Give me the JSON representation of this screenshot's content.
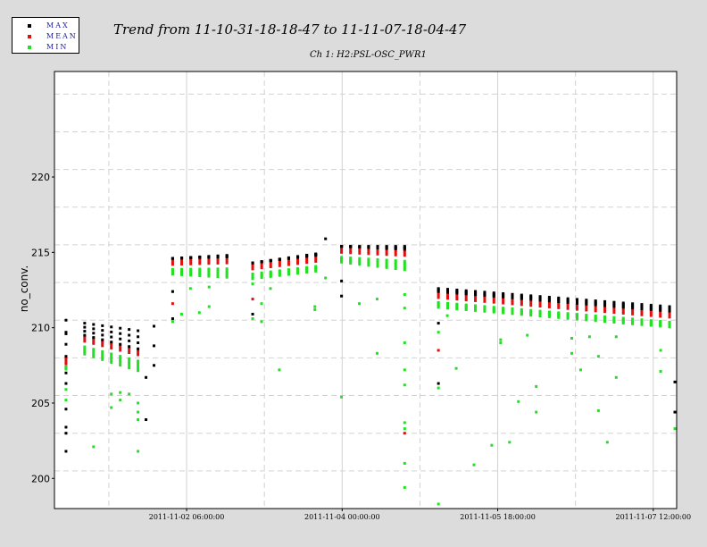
{
  "legend": {
    "items": [
      {
        "label": "MAX",
        "color": "#000000"
      },
      {
        "label": "MEAN",
        "color": "#e01010"
      },
      {
        "label": "MIN",
        "color": "#22e022"
      }
    ]
  },
  "chart_data": {
    "type": "scatter",
    "title": "Trend from 11-10-31-18-18-47 to 11-11-07-18-04-47",
    "subtitle": "Ch 1: H2:PSL-OSC_PWR1",
    "ylabel": "no_conv.",
    "xlabel": "",
    "ylim": [
      198,
      227
    ],
    "xlim": [
      0,
      7
    ],
    "x_unit": "days since 2011-10-31 18:18:47",
    "yticks": [
      200,
      205,
      210,
      215,
      220
    ],
    "xticks": [
      {
        "x": 1.4869,
        "label": "2011-11-02 06:00:00"
      },
      {
        "x": 3.2369,
        "label": "2011-11-04 00:00:00"
      },
      {
        "x": 4.9869,
        "label": "2011-11-05 18:00:00"
      },
      {
        "x": 6.7369,
        "label": "2011-11-07 12:00:00"
      }
    ],
    "minor_grid_x": [
      0.6119,
      2.3619,
      4.1119,
      5.8619
    ],
    "grid": true,
    "legend_position": "top-left",
    "colors": {
      "max": "#000000",
      "mean": "#e01010",
      "min": "#22e022"
    },
    "segments": [
      {
        "x_start": 0.13,
        "x_end": 0.13,
        "n": 1,
        "max": [
          210.5,
          210.5
        ],
        "mean": [
          207.7,
          207.7
        ],
        "min": [
          207.5,
          207.5
        ]
      },
      {
        "x_start": 0.34,
        "x_end": 0.94,
        "n": 7,
        "max": [
          210.3,
          209.8
        ],
        "mean": [
          209.1,
          208.2
        ],
        "min": [
          208.5,
          207.4
        ]
      },
      {
        "x_start": 1.33,
        "x_end": 1.94,
        "n": 7,
        "max": [
          214.6,
          214.8
        ],
        "mean": [
          214.2,
          214.3
        ],
        "min": [
          213.8,
          213.6
        ]
      },
      {
        "x_start": 2.23,
        "x_end": 2.94,
        "n": 8,
        "max": [
          214.3,
          214.9
        ],
        "mean": [
          213.9,
          214.4
        ],
        "min": [
          213.5,
          214.0
        ]
      },
      {
        "x_start": 3.23,
        "x_end": 3.94,
        "n": 8,
        "max": [
          215.4,
          215.4
        ],
        "mean": [
          215.0,
          214.8
        ],
        "min": [
          214.6,
          214.1
        ]
      },
      {
        "x_start": 4.32,
        "x_end": 6.92,
        "n": 26,
        "max": [
          212.6,
          211.4
        ],
        "mean": [
          212.0,
          210.7
        ],
        "min": [
          211.6,
          210.3
        ]
      }
    ],
    "outliers": {
      "max": [
        {
          "x": 0.13,
          "y": 201.8
        },
        {
          "x": 0.13,
          "y": 203.0
        },
        {
          "x": 0.13,
          "y": 203.4
        },
        {
          "x": 0.13,
          "y": 204.6
        },
        {
          "x": 0.13,
          "y": 206.3
        },
        {
          "x": 0.13,
          "y": 207.0
        },
        {
          "x": 0.13,
          "y": 209.6
        },
        {
          "x": 1.03,
          "y": 203.9
        },
        {
          "x": 1.03,
          "y": 206.7
        },
        {
          "x": 1.12,
          "y": 207.5
        },
        {
          "x": 1.12,
          "y": 208.8
        },
        {
          "x": 1.12,
          "y": 210.1
        },
        {
          "x": 1.33,
          "y": 210.6
        },
        {
          "x": 1.33,
          "y": 212.4
        },
        {
          "x": 2.23,
          "y": 210.9
        },
        {
          "x": 3.23,
          "y": 212.1
        },
        {
          "x": 3.23,
          "y": 213.1
        },
        {
          "x": 3.05,
          "y": 215.9
        },
        {
          "x": 4.32,
          "y": 206.3
        },
        {
          "x": 4.32,
          "y": 210.3
        },
        {
          "x": 6.98,
          "y": 204.4
        },
        {
          "x": 6.98,
          "y": 206.4
        }
      ],
      "mean": [
        {
          "x": 0.13,
          "y": 207.6
        },
        {
          "x": 1.33,
          "y": 211.6
        },
        {
          "x": 2.23,
          "y": 211.9
        },
        {
          "x": 4.32,
          "y": 208.5
        },
        {
          "x": 3.94,
          "y": 203.0
        }
      ],
      "min": [
        {
          "x": 0.13,
          "y": 205.9
        },
        {
          "x": 0.13,
          "y": 205.2
        },
        {
          "x": 0.44,
          "y": 202.1
        },
        {
          "x": 0.64,
          "y": 205.6
        },
        {
          "x": 0.64,
          "y": 204.7
        },
        {
          "x": 0.74,
          "y": 205.2
        },
        {
          "x": 0.74,
          "y": 205.7
        },
        {
          "x": 0.84,
          "y": 205.6
        },
        {
          "x": 0.94,
          "y": 201.8
        },
        {
          "x": 0.94,
          "y": 203.9
        },
        {
          "x": 0.94,
          "y": 204.4
        },
        {
          "x": 0.94,
          "y": 205.0
        },
        {
          "x": 1.03,
          "y": 203.9
        },
        {
          "x": 1.33,
          "y": 210.4
        },
        {
          "x": 1.33,
          "y": 212.4
        },
        {
          "x": 1.43,
          "y": 210.9
        },
        {
          "x": 1.53,
          "y": 212.6
        },
        {
          "x": 1.63,
          "y": 211.0
        },
        {
          "x": 1.74,
          "y": 211.4
        },
        {
          "x": 1.74,
          "y": 212.7
        },
        {
          "x": 2.23,
          "y": 210.6
        },
        {
          "x": 2.23,
          "y": 212.9
        },
        {
          "x": 2.33,
          "y": 210.4
        },
        {
          "x": 2.33,
          "y": 211.6
        },
        {
          "x": 2.43,
          "y": 212.6
        },
        {
          "x": 2.53,
          "y": 207.2
        },
        {
          "x": 2.93,
          "y": 211.2
        },
        {
          "x": 2.93,
          "y": 211.4
        },
        {
          "x": 3.05,
          "y": 213.3
        },
        {
          "x": 3.23,
          "y": 205.4
        },
        {
          "x": 3.23,
          "y": 212.1
        },
        {
          "x": 3.43,
          "y": 211.6
        },
        {
          "x": 3.63,
          "y": 208.3
        },
        {
          "x": 3.63,
          "y": 211.9
        },
        {
          "x": 3.94,
          "y": 199.4
        },
        {
          "x": 3.94,
          "y": 201.0
        },
        {
          "x": 3.94,
          "y": 203.3
        },
        {
          "x": 3.94,
          "y": 203.7
        },
        {
          "x": 3.94,
          "y": 206.2
        },
        {
          "x": 3.94,
          "y": 207.2
        },
        {
          "x": 3.94,
          "y": 209.0
        },
        {
          "x": 3.94,
          "y": 211.3
        },
        {
          "x": 3.94,
          "y": 212.2
        },
        {
          "x": 4.32,
          "y": 198.3
        },
        {
          "x": 4.32,
          "y": 206.0
        },
        {
          "x": 4.32,
          "y": 209.7
        },
        {
          "x": 4.42,
          "y": 210.8
        },
        {
          "x": 4.52,
          "y": 207.3
        },
        {
          "x": 4.72,
          "y": 200.9
        },
        {
          "x": 4.92,
          "y": 202.2
        },
        {
          "x": 5.02,
          "y": 209.0
        },
        {
          "x": 5.02,
          "y": 209.2
        },
        {
          "x": 5.12,
          "y": 202.4
        },
        {
          "x": 5.22,
          "y": 205.1
        },
        {
          "x": 5.32,
          "y": 209.5
        },
        {
          "x": 5.42,
          "y": 206.1
        },
        {
          "x": 5.42,
          "y": 204.4
        },
        {
          "x": 5.82,
          "y": 209.3
        },
        {
          "x": 5.82,
          "y": 208.3
        },
        {
          "x": 5.92,
          "y": 207.2
        },
        {
          "x": 6.02,
          "y": 209.4
        },
        {
          "x": 6.12,
          "y": 204.5
        },
        {
          "x": 6.12,
          "y": 208.1
        },
        {
          "x": 6.22,
          "y": 202.4
        },
        {
          "x": 6.32,
          "y": 209.4
        },
        {
          "x": 6.32,
          "y": 206.7
        },
        {
          "x": 6.82,
          "y": 208.5
        },
        {
          "x": 6.82,
          "y": 207.1
        },
        {
          "x": 6.98,
          "y": 203.3
        }
      ]
    }
  }
}
